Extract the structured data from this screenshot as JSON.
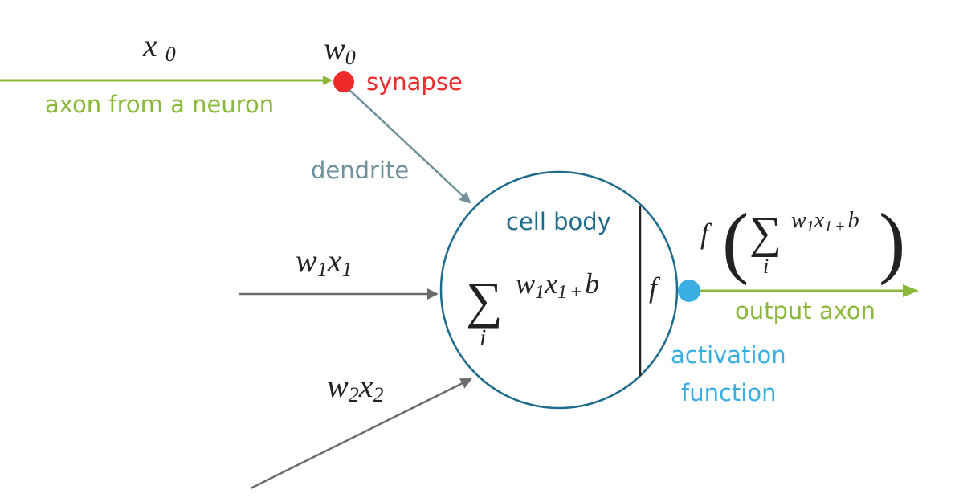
{
  "colors": {
    "green": "#8ab83a",
    "red": "#ee2a2a",
    "teal": "#6f919b",
    "navy": "#1f6b8c",
    "cyan": "#3aaee3",
    "gray": "#6b6b6b",
    "black": "#222222"
  },
  "input0": {
    "x_var": "x",
    "x_sub": "0",
    "w_var": "w",
    "w_sub": "0"
  },
  "labels": {
    "synapse": "synapse",
    "axon_from": "axon from a neuron",
    "dendrite": "dendrite",
    "cell_body": "cell body",
    "output_axon": "output axon",
    "activation_line1": "activation",
    "activation_line2": "function"
  },
  "input1": {
    "w_var": "w",
    "w_sub": "1",
    "x_var": "x",
    "x_sub": "1"
  },
  "input2": {
    "w_var": "w",
    "w_sub": "2",
    "x_var": "x",
    "x_sub": "2"
  },
  "cell_formula": {
    "sigma": "∑",
    "index": "i",
    "w_var": "w",
    "w_sub": "1",
    "x_var": "x",
    "x_sub": "1",
    "plus": "+",
    "bias": "b",
    "f": "f"
  },
  "output_formula": {
    "f": "f",
    "open_paren": "(",
    "close_paren": ")",
    "sigma": "∑",
    "index": "i",
    "w_var": "w",
    "w_sub": "1",
    "x_var": "x",
    "x_sub": "1",
    "plus": "+",
    "bias": "b"
  }
}
